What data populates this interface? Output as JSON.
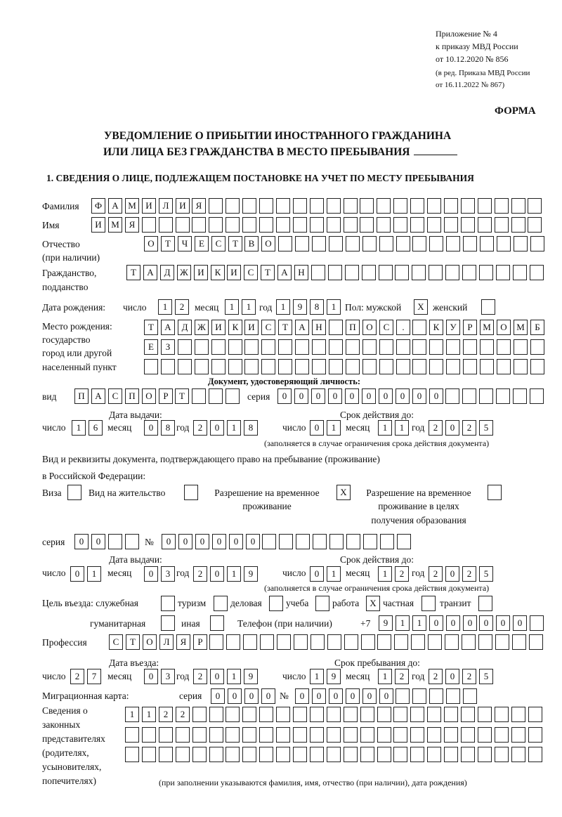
{
  "header": {
    "appendix": [
      "Приложение № 4",
      "к приказу МВД России",
      "от 10.12.2020 № 856"
    ],
    "edition": [
      "(в ред. Приказа МВД России",
      "от 16.11.2022 № 867)"
    ],
    "forma": "ФОРМА",
    "title_line1": "УВЕДОМЛЕНИЕ О ПРИБЫТИИ ИНОСТРАННОГО ГРАЖДАНИНА",
    "title_line2": "ИЛИ ЛИЦА БЕЗ ГРАЖДАНСТВА В МЕСТО ПРЕБЫВАНИЯ",
    "section1_title": "1. СВЕДЕНИЯ О ЛИЦЕ, ПОДЛЕЖАЩЕМ ПОСТАНОВКЕ НА УЧЕТ ПО МЕСТУ ПРЕБЫВАНИЯ"
  },
  "labels": {
    "surname": "Фамилия",
    "name": "Имя",
    "patronymic": "Отчество",
    "patronymic_note": "(при наличии)",
    "citizenship": "Гражданство,",
    "citizenship2": "подданство",
    "birth_date": "Дата рождения:",
    "day": "число",
    "month": "месяц",
    "year": "год",
    "sex": "Пол: мужской",
    "female": "женский",
    "birth_place": "Место рождения:",
    "state": "государство",
    "city": "город или другой",
    "settlement": "населенный пункт",
    "id_doc": "Документ, удостоверяющий личность:",
    "kind": "вид",
    "series": "серия",
    "number": "№",
    "issue_date": "Дата выдачи:",
    "valid_until": "Срок действия до:",
    "validity_note": "(заполняется в случае ограничения срока действия документа)",
    "stay_doc1": "Вид и реквизиты документа, подтверждающего право на пребывание (проживание)",
    "stay_doc2": "в Российской Федерации:",
    "visa": "Виза",
    "residence_permit": "Вид на жительство",
    "temp_residence": [
      "Разрешение на временное",
      "проживание"
    ],
    "temp_residence_edu": [
      "Разрешение на временное",
      "проживание в целях",
      "получения образования"
    ],
    "purpose": "Цель въезда: служебная",
    "tourism": "туризм",
    "business": "деловая",
    "study": "учеба",
    "work": "работа",
    "private": "частная",
    "transit": "транзит",
    "humanitarian": "гуманитарная",
    "other": "иная",
    "phone": "Телефон (при наличии)",
    "phone_prefix": "+7",
    "profession": "Профессия",
    "entry_date": "Дата въезда:",
    "stay_until": "Срок пребывания до:",
    "migration_card": "Миграционная карта:",
    "guardians": [
      "Сведения о",
      "законных",
      "представителях",
      "(родителях,",
      "усыновителях,",
      "попечителях)"
    ],
    "guardians_note": "(при заполнении указываются фамилия, имя, отчество (при наличии), дата рождения)"
  },
  "cells": {
    "surname": [
      "Ф",
      "А",
      "М",
      "И",
      "Л",
      "И",
      "Я"
    ],
    "name": [
      "И",
      "М",
      "Я"
    ],
    "patronymic": [
      "О",
      "Т",
      "Ч",
      "Е",
      "С",
      "Т",
      "В",
      "О"
    ],
    "citizenship": [
      "Т",
      "А",
      "Д",
      "Ж",
      "И",
      "К",
      "И",
      "С",
      "Т",
      "А",
      "Н"
    ],
    "birth_day": [
      "1",
      "2"
    ],
    "birth_month": [
      "1",
      "1"
    ],
    "birth_year": [
      "1",
      "9",
      "8",
      "1"
    ],
    "sex_male": [
      "X"
    ],
    "sex_female": [
      ""
    ],
    "birth_place_1": [
      "Т",
      "А",
      "Д",
      "Ж",
      "И",
      "К",
      "И",
      "С",
      "Т",
      "А",
      "Н",
      "",
      "П",
      "О",
      "С",
      ".",
      "",
      "К",
      "У",
      "Р",
      "М",
      "О",
      "М",
      "Б"
    ],
    "birth_place_2": [
      "Е",
      "З"
    ],
    "birth_place_3": [],
    "id_kind": [
      "П",
      "А",
      "С",
      "П",
      "О",
      "Р",
      "Т"
    ],
    "id_series": [
      "0",
      "0",
      "0",
      "0"
    ],
    "id_number": [
      "0",
      "0",
      "0",
      "0",
      "0",
      "0"
    ],
    "id_issue_day": [
      "1",
      "6"
    ],
    "id_issue_month": [
      "0",
      "8"
    ],
    "id_issue_year": [
      "2",
      "0",
      "1",
      "8"
    ],
    "id_valid_day": [
      "0",
      "1"
    ],
    "id_valid_month": [
      "1",
      "1"
    ],
    "id_valid_year": [
      "2",
      "0",
      "2",
      "5"
    ],
    "visa": [
      ""
    ],
    "residence_permit": [
      ""
    ],
    "temp_residence": [
      "X"
    ],
    "temp_residence_edu": [
      ""
    ],
    "stay_series": [
      "0",
      "0"
    ],
    "stay_number": [
      "0",
      "0",
      "0",
      "0",
      "0",
      "0"
    ],
    "stay_issue_day": [
      "0",
      "1"
    ],
    "stay_issue_month": [
      "0",
      "3"
    ],
    "stay_issue_year": [
      "2",
      "0",
      "1",
      "9"
    ],
    "stay_valid_day": [
      "0",
      "1"
    ],
    "stay_valid_month": [
      "1",
      "2"
    ],
    "stay_valid_year": [
      "2",
      "0",
      "2",
      "5"
    ],
    "purpose_official": [
      ""
    ],
    "purpose_tourism": [
      ""
    ],
    "purpose_business": [
      ""
    ],
    "purpose_study": [
      ""
    ],
    "purpose_work": [
      "X"
    ],
    "purpose_private": [
      ""
    ],
    "purpose_transit": [
      ""
    ],
    "purpose_humanitarian": [
      ""
    ],
    "purpose_other": [
      ""
    ],
    "phone": [
      "9",
      "1",
      "1",
      "0",
      "0",
      "0",
      "0",
      "0",
      "0"
    ],
    "profession": [
      "С",
      "Т",
      "О",
      "Л",
      "Я",
      "Р"
    ],
    "entry_day": [
      "2",
      "7"
    ],
    "entry_month": [
      "0",
      "3"
    ],
    "entry_year": [
      "2",
      "0",
      "1",
      "9"
    ],
    "stay_until_day": [
      "1",
      "9"
    ],
    "stay_until_month": [
      "1",
      "2"
    ],
    "stay_until_year": [
      "2",
      "0",
      "2",
      "5"
    ],
    "mig_series": [
      "0",
      "0",
      "0",
      "0"
    ],
    "mig_number": [
      "0",
      "0",
      "0",
      "0",
      "0",
      "0"
    ],
    "guardians_1": [
      "1",
      "1",
      "2",
      "2"
    ],
    "guardians_2": [],
    "guardians_3": []
  }
}
